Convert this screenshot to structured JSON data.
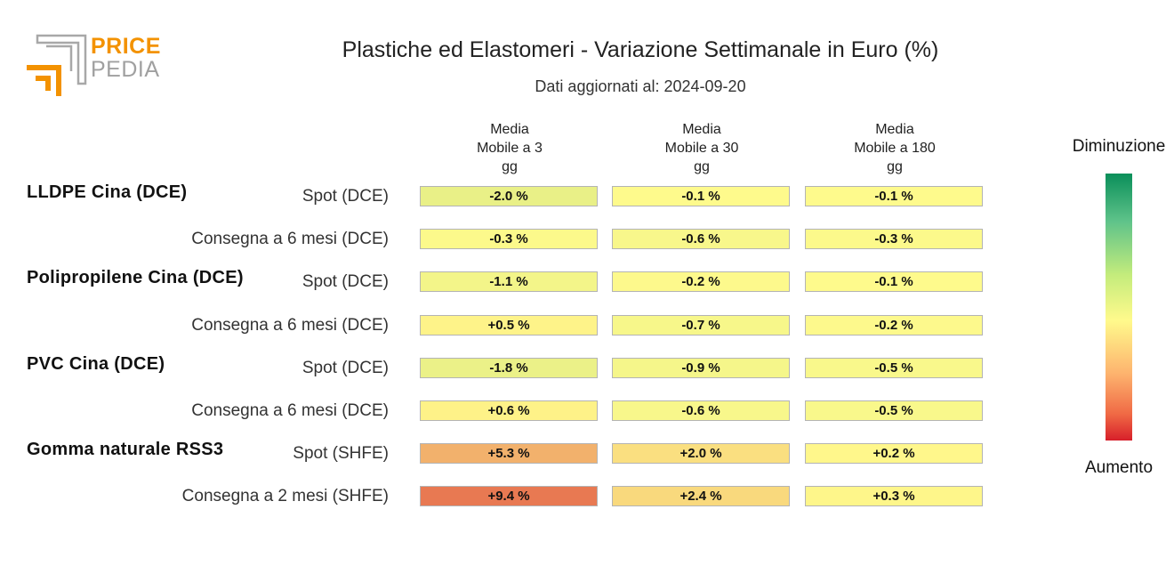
{
  "logo": {
    "line1": "PRICE",
    "line2": "PEDIA"
  },
  "title": "Plastiche ed Elastomeri - Variazione Settimanale in Euro (%)",
  "subtitle": "Dati aggiornati al: 2024-09-20",
  "chart_data": {
    "type": "heatmap",
    "columns": [
      [
        "Media",
        "Mobile a 3",
        "gg"
      ],
      [
        "Media",
        "Mobile a 30",
        "gg"
      ],
      [
        "Media",
        "Mobile a 180",
        "gg"
      ]
    ],
    "rows": [
      {
        "group": "LLDPE Cina (DCE)",
        "label": "Spot (DCE)",
        "values": [
          -2.0,
          -0.1,
          -0.1
        ],
        "text": [
          "-2.0 %",
          "-0.1 %",
          "-0.1 %"
        ]
      },
      {
        "group": "",
        "label": "Consegna a 6 mesi (DCE)",
        "values": [
          -0.3,
          -0.6,
          -0.3
        ],
        "text": [
          "-0.3 %",
          "-0.6 %",
          "-0.3 %"
        ]
      },
      {
        "group": "Polipropilene Cina (DCE)",
        "label": "Spot (DCE)",
        "values": [
          -1.1,
          -0.2,
          -0.1
        ],
        "text": [
          "-1.1 %",
          "-0.2 %",
          "-0.1 %"
        ]
      },
      {
        "group": "",
        "label": "Consegna a 6 mesi (DCE)",
        "values": [
          0.5,
          -0.7,
          -0.2
        ],
        "text": [
          "+0.5 %",
          "-0.7 %",
          "-0.2 %"
        ]
      },
      {
        "group": "PVC Cina (DCE)",
        "label": "Spot (DCE)",
        "values": [
          -1.8,
          -0.9,
          -0.5
        ],
        "text": [
          "-1.8 %",
          "-0.9 %",
          "-0.5 %"
        ]
      },
      {
        "group": "",
        "label": "Consegna a 6 mesi (DCE)",
        "values": [
          0.6,
          -0.6,
          -0.5
        ],
        "text": [
          "+0.6 %",
          "-0.6 %",
          "-0.5 %"
        ]
      },
      {
        "group": "Gomma naturale RSS3",
        "label": "Spot (SHFE)",
        "values": [
          5.3,
          2.0,
          0.2
        ],
        "text": [
          "+5.3 %",
          "+2.0 %",
          "+0.2 %"
        ]
      },
      {
        "group": "",
        "label": "Consegna a 2 mesi (SHFE)",
        "values": [
          9.4,
          2.4,
          0.3
        ],
        "text": [
          "+9.4 %",
          "+2.4 %",
          "+0.3 %"
        ]
      }
    ],
    "color_scale": {
      "decrease": "#0a8f5a",
      "neutral": "#fffa8c",
      "increase": "#d71f2a"
    }
  },
  "legend": {
    "top": "Diminuzione",
    "bottom": "Aumento"
  }
}
